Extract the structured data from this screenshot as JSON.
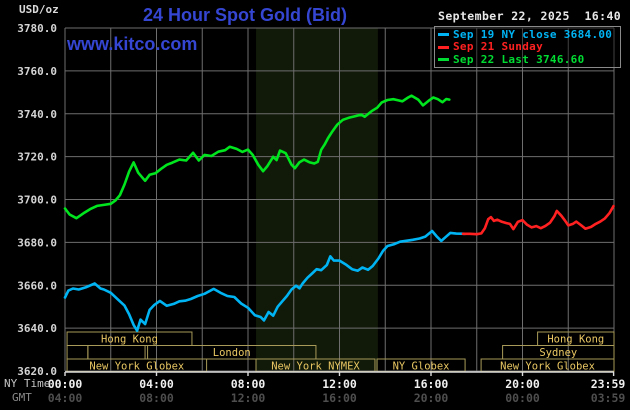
{
  "header": {
    "unit_label": "USD/oz",
    "title": "24 Hour Spot Gold (Bid)",
    "datetime": "September 22, 2025  16:40",
    "watermark": "www.kitco.com"
  },
  "colors": {
    "brand_blue": "#3546d2",
    "grid": "#6e6e6e",
    "axis_line": "#dcdcdc",
    "nymex_band": "#111909",
    "session_border": "#a89a58",
    "session_text": "#e9c763",
    "y_tick_text": "#d4d4d4",
    "ny_tick_text": "#f0f0f0",
    "gmt_tick_text": "#4e4e4e"
  },
  "legend": {
    "items": [
      {
        "label": "Sep 19 NY close 3684.00",
        "color": "#00b4f4"
      },
      {
        "label": "Sep 21 Sunday",
        "color": "#ff2121"
      },
      {
        "label": "Sep 22 Last 3746.60",
        "color": "#00dc32"
      }
    ]
  },
  "axes": {
    "ny_label": "NY Time",
    "gmt_label": "GMT",
    "y_ticks": [
      "3780.0",
      "3760.0",
      "3740.0",
      "3720.0",
      "3700.0",
      "3680.0",
      "3660.0",
      "3640.0",
      "3620.0"
    ],
    "x_ticks": [
      {
        "t": 0,
        "ny": "00:00",
        "gmt": "04:00"
      },
      {
        "t": 4,
        "ny": "04:00",
        "gmt": "08:00"
      },
      {
        "t": 8,
        "ny": "08:00",
        "gmt": "12:00"
      },
      {
        "t": 12,
        "ny": "12:00",
        "gmt": "16:00"
      },
      {
        "t": 16,
        "ny": "16:00",
        "gmt": "20:00"
      },
      {
        "t": 20,
        "ny": "20:00",
        "gmt": "00:00"
      },
      {
        "t": 23.983,
        "ny": "23:59",
        "gmt": "03:59"
      }
    ]
  },
  "sessions": {
    "rows": [
      {
        "boxes": [
          {
            "label": "Hong Kong",
            "t0": 0.09,
            "t1": 5.55
          },
          {
            "label": "Hong Kong",
            "t0": 20.66,
            "t1": 24
          }
        ]
      },
      {
        "boxes": [
          {
            "label": "",
            "t0": 0.09,
            "t1": 1.0
          },
          {
            "label": "",
            "t0": 1.0,
            "t1": 3.5
          },
          {
            "label": "London",
            "t0": 3.61,
            "t1": 10.97
          },
          {
            "label": "Sydney",
            "t0": 19.13,
            "t1": 24
          }
        ]
      },
      {
        "boxes": [
          {
            "label": "New York Globex",
            "t0": 0.09,
            "t1": 6.19
          },
          {
            "label": "New York NYMEX",
            "t0": 8.35,
            "t1": 13.55
          },
          {
            "label": "NY Globex",
            "t0": 13.64,
            "t1": 17.49
          },
          {
            "label": "New York Globex",
            "t0": 18.19,
            "t1": 24
          }
        ]
      }
    ]
  },
  "chart_data": {
    "type": "line",
    "title": "24 Hour Spot Gold (Bid)",
    "xlabel": "NY Time (hours)",
    "ylabel": "USD/oz",
    "xlim": [
      0,
      24
    ],
    "ylim": [
      3620,
      3780
    ],
    "y_tick_step": 20,
    "x_gridline_step_hours": 2,
    "grid": true,
    "legend_position": "top-right",
    "nymex_highlight_band": [
      8.35,
      13.68
    ],
    "series": [
      {
        "name": "Sep 19 NY close",
        "color": "#00b4f4",
        "close_value": 3684.0,
        "points": [
          [
            0,
            3654.3
          ],
          [
            0.15,
            3657.5
          ],
          [
            0.35,
            3658.5
          ],
          [
            0.6,
            3658
          ],
          [
            0.9,
            3659
          ],
          [
            1.3,
            3660.8
          ],
          [
            1.55,
            3658.5
          ],
          [
            1.7,
            3658
          ],
          [
            2.0,
            3656.5
          ],
          [
            2.3,
            3653.5
          ],
          [
            2.6,
            3650.5
          ],
          [
            2.8,
            3646.5
          ],
          [
            3.0,
            3641.5
          ],
          [
            3.15,
            3638.8
          ],
          [
            3.3,
            3644
          ],
          [
            3.5,
            3641.9
          ],
          [
            3.7,
            3648.5
          ],
          [
            3.9,
            3650.8
          ],
          [
            4.15,
            3652.7
          ],
          [
            4.45,
            3650.4
          ],
          [
            4.75,
            3651.3
          ],
          [
            5.0,
            3652.5
          ],
          [
            5.25,
            3652.8
          ],
          [
            5.5,
            3653.6
          ],
          [
            5.8,
            3655
          ],
          [
            6.1,
            3656
          ],
          [
            6.5,
            3658.3
          ],
          [
            6.8,
            3656.5
          ],
          [
            7.1,
            3655
          ],
          [
            7.4,
            3654.5
          ],
          [
            7.7,
            3651.5
          ],
          [
            8.0,
            3649.5
          ],
          [
            8.3,
            3646
          ],
          [
            8.55,
            3645.2
          ],
          [
            8.7,
            3643.6
          ],
          [
            8.9,
            3647.5
          ],
          [
            9.1,
            3645.8
          ],
          [
            9.3,
            3650
          ],
          [
            9.5,
            3652.5
          ],
          [
            9.7,
            3655
          ],
          [
            9.9,
            3658
          ],
          [
            10.1,
            3659.8
          ],
          [
            10.25,
            3658.6
          ],
          [
            10.4,
            3661
          ],
          [
            10.6,
            3663.5
          ],
          [
            10.8,
            3665.5
          ],
          [
            11.0,
            3667.5
          ],
          [
            11.2,
            3667
          ],
          [
            11.45,
            3669.5
          ],
          [
            11.6,
            3673.5
          ],
          [
            11.75,
            3671.5
          ],
          [
            12.0,
            3671.5
          ],
          [
            12.3,
            3669.5
          ],
          [
            12.55,
            3667.5
          ],
          [
            12.8,
            3666.8
          ],
          [
            13.0,
            3668.3
          ],
          [
            13.25,
            3667.2
          ],
          [
            13.45,
            3669
          ],
          [
            13.7,
            3672.5
          ],
          [
            13.9,
            3676
          ],
          [
            14.1,
            3678.3
          ],
          [
            14.4,
            3679.2
          ],
          [
            14.65,
            3680.3
          ],
          [
            14.95,
            3680.8
          ],
          [
            15.2,
            3681.2
          ],
          [
            15.5,
            3681.8
          ],
          [
            15.75,
            3682.7
          ],
          [
            16.05,
            3685.3
          ],
          [
            16.25,
            3682.8
          ],
          [
            16.45,
            3680.7
          ],
          [
            16.65,
            3682.6
          ],
          [
            16.85,
            3684.4
          ],
          [
            17.1,
            3684.1
          ],
          [
            17.5,
            3684.0
          ]
        ]
      },
      {
        "name": "Sep 21 Sunday",
        "color": "#ff2121",
        "points": [
          [
            17.4,
            3684
          ],
          [
            17.7,
            3684
          ],
          [
            18.0,
            3683.8
          ],
          [
            18.2,
            3684.2
          ],
          [
            18.35,
            3686.5
          ],
          [
            18.5,
            3690.8
          ],
          [
            18.62,
            3691.8
          ],
          [
            18.75,
            3690
          ],
          [
            18.9,
            3690.6
          ],
          [
            19.1,
            3689.6
          ],
          [
            19.3,
            3689
          ],
          [
            19.45,
            3688.6
          ],
          [
            19.6,
            3686.2
          ],
          [
            19.8,
            3689.6
          ],
          [
            20.0,
            3690.4
          ],
          [
            20.2,
            3688.2
          ],
          [
            20.4,
            3687
          ],
          [
            20.6,
            3687.6
          ],
          [
            20.8,
            3686.6
          ],
          [
            21.0,
            3687.7
          ],
          [
            21.2,
            3689.2
          ],
          [
            21.4,
            3692.3
          ],
          [
            21.5,
            3694.7
          ],
          [
            21.7,
            3692.4
          ],
          [
            21.85,
            3690.3
          ],
          [
            22.0,
            3687.9
          ],
          [
            22.2,
            3688.6
          ],
          [
            22.35,
            3689.7
          ],
          [
            22.55,
            3688.1
          ],
          [
            22.75,
            3686.4
          ],
          [
            23.0,
            3687.2
          ],
          [
            23.2,
            3688.6
          ],
          [
            23.4,
            3689.7
          ],
          [
            23.6,
            3691.2
          ],
          [
            23.8,
            3693.6
          ],
          [
            23.98,
            3696.9
          ]
        ]
      },
      {
        "name": "Sep 22 Last",
        "color": "#00e61e",
        "last_value": 3746.6,
        "points": [
          [
            0,
            3695.8
          ],
          [
            0.2,
            3693
          ],
          [
            0.5,
            3691.3
          ],
          [
            0.8,
            3693.5
          ],
          [
            1.1,
            3695.5
          ],
          [
            1.4,
            3697
          ],
          [
            1.7,
            3697.5
          ],
          [
            2.0,
            3698
          ],
          [
            2.2,
            3699.5
          ],
          [
            2.4,
            3702
          ],
          [
            2.6,
            3707
          ],
          [
            2.8,
            3713
          ],
          [
            3.0,
            3717.3
          ],
          [
            3.2,
            3712.5
          ],
          [
            3.5,
            3708.7
          ],
          [
            3.7,
            3711.5
          ],
          [
            3.95,
            3712.2
          ],
          [
            4.2,
            3714.3
          ],
          [
            4.45,
            3716.2
          ],
          [
            4.7,
            3717.2
          ],
          [
            5.0,
            3718.6
          ],
          [
            5.3,
            3718.2
          ],
          [
            5.6,
            3721.8
          ],
          [
            5.85,
            3718.2
          ],
          [
            6.1,
            3720.8
          ],
          [
            6.4,
            3720.3
          ],
          [
            6.7,
            3722.3
          ],
          [
            7.0,
            3723
          ],
          [
            7.2,
            3724.6
          ],
          [
            7.5,
            3723.6
          ],
          [
            7.75,
            3722.2
          ],
          [
            8.0,
            3723.3
          ],
          [
            8.2,
            3720.9
          ],
          [
            8.45,
            3716.2
          ],
          [
            8.66,
            3713.2
          ],
          [
            8.85,
            3715.6
          ],
          [
            9.1,
            3719.9
          ],
          [
            9.25,
            3718.4
          ],
          [
            9.4,
            3722.8
          ],
          [
            9.65,
            3721.6
          ],
          [
            9.9,
            3716.3
          ],
          [
            10.05,
            3714.6
          ],
          [
            10.25,
            3717.4
          ],
          [
            10.45,
            3718.6
          ],
          [
            10.7,
            3717.3
          ],
          [
            10.9,
            3716.8
          ],
          [
            11.05,
            3717.6
          ],
          [
            11.2,
            3723.2
          ],
          [
            11.35,
            3725.6
          ],
          [
            11.5,
            3728.7
          ],
          [
            11.7,
            3731.9
          ],
          [
            11.9,
            3734.9
          ],
          [
            12.15,
            3737.2
          ],
          [
            12.4,
            3738.1
          ],
          [
            12.7,
            3738.9
          ],
          [
            12.95,
            3739.6
          ],
          [
            13.1,
            3738.6
          ],
          [
            13.4,
            3741.2
          ],
          [
            13.65,
            3742.8
          ],
          [
            13.85,
            3745.3
          ],
          [
            14.1,
            3746.4
          ],
          [
            14.35,
            3746.8
          ],
          [
            14.6,
            3746.2
          ],
          [
            14.75,
            3745.8
          ],
          [
            15.0,
            3747.6
          ],
          [
            15.15,
            3748.4
          ],
          [
            15.45,
            3746.5
          ],
          [
            15.65,
            3743.9
          ],
          [
            15.9,
            3746.1
          ],
          [
            16.1,
            3747.6
          ],
          [
            16.3,
            3746.8
          ],
          [
            16.5,
            3745.4
          ],
          [
            16.67,
            3746.9
          ],
          [
            16.8,
            3746.6
          ]
        ]
      }
    ]
  }
}
